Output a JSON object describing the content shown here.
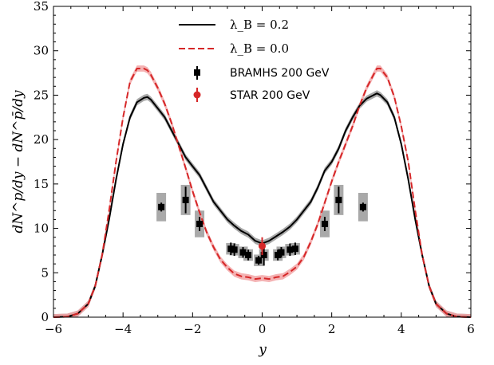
{
  "chart_data": {
    "type": "line",
    "xlabel": "y",
    "ylabel": "dN^p/dy − dN^p̄/dy",
    "xlim": [
      -6,
      6
    ],
    "ylim": [
      0,
      35
    ],
    "xticks": [
      "−6",
      "−4",
      "−2",
      "0",
      "2",
      "4",
      "6"
    ],
    "yticks": [
      "0",
      "5",
      "10",
      "15",
      "20",
      "25",
      "30",
      "35"
    ],
    "legend_position": "top-center",
    "series": [
      {
        "name": "λ_B = 0.2",
        "style": "solid",
        "color": "#000000",
        "band_color": "#9a9a9a",
        "x": [
          -6.0,
          -5.6,
          -5.3,
          -5.0,
          -4.8,
          -4.6,
          -4.4,
          -4.2,
          -4.0,
          -3.8,
          -3.6,
          -3.4,
          -3.3,
          -3.2,
          -3.0,
          -2.8,
          -2.6,
          -2.4,
          -2.2,
          -2.0,
          -1.8,
          -1.6,
          -1.4,
          -1.2,
          -1.0,
          -0.8,
          -0.6,
          -0.4,
          -0.2,
          0.0,
          0.2,
          0.4,
          0.6,
          0.8,
          1.0,
          1.2,
          1.4,
          1.6,
          1.8,
          2.0,
          2.2,
          2.4,
          2.6,
          2.8,
          3.0,
          3.2,
          3.3,
          3.4,
          3.6,
          3.8,
          4.0,
          4.2,
          4.4,
          4.6,
          4.8,
          5.0,
          5.3,
          5.6,
          6.0
        ],
        "values": [
          0,
          0.05,
          0.4,
          1.5,
          3.5,
          7.0,
          11.0,
          15.5,
          19.5,
          22.5,
          24.2,
          24.7,
          24.8,
          24.5,
          23.5,
          22.5,
          21.0,
          19.5,
          18.0,
          17.0,
          16.0,
          14.5,
          13.0,
          12.0,
          11.0,
          10.3,
          9.7,
          9.3,
          8.6,
          8.3,
          8.6,
          9.1,
          9.6,
          10.2,
          11.0,
          12.0,
          13.0,
          14.6,
          16.5,
          17.5,
          19.0,
          21.0,
          22.5,
          23.8,
          24.6,
          25.0,
          25.2,
          25.0,
          24.2,
          22.5,
          19.5,
          15.5,
          11.0,
          7.0,
          3.5,
          1.5,
          0.4,
          0.05,
          0
        ]
      },
      {
        "name": "λ_B = 0.0",
        "style": "dashed",
        "color": "#d62728",
        "band_color": "#f2a4a6",
        "x": [
          -6.0,
          -5.6,
          -5.3,
          -5.0,
          -4.8,
          -4.6,
          -4.4,
          -4.2,
          -4.0,
          -3.8,
          -3.6,
          -3.4,
          -3.3,
          -3.2,
          -3.0,
          -2.8,
          -2.6,
          -2.4,
          -2.2,
          -2.0,
          -1.8,
          -1.6,
          -1.4,
          -1.2,
          -1.0,
          -0.8,
          -0.6,
          -0.4,
          -0.2,
          0.0,
          0.2,
          0.4,
          0.6,
          0.8,
          1.0,
          1.2,
          1.4,
          1.6,
          1.8,
          2.0,
          2.2,
          2.4,
          2.6,
          2.8,
          3.0,
          3.2,
          3.3,
          3.4,
          3.6,
          3.8,
          4.0,
          4.2,
          4.4,
          4.6,
          4.8,
          5.0,
          5.3,
          5.6,
          6.0
        ],
        "values": [
          0,
          0.05,
          0.4,
          1.5,
          3.5,
          7.0,
          12.0,
          17.5,
          22.5,
          26.5,
          28.0,
          28.0,
          27.8,
          27.3,
          25.8,
          24.0,
          21.8,
          19.3,
          16.8,
          14.2,
          11.8,
          9.6,
          7.9,
          6.5,
          5.6,
          4.9,
          4.6,
          4.5,
          4.3,
          4.4,
          4.3,
          4.5,
          4.6,
          5.1,
          5.7,
          6.8,
          8.5,
          10.5,
          12.9,
          15.3,
          17.5,
          19.5,
          21.5,
          23.8,
          25.8,
          27.3,
          28.0,
          28.0,
          27.0,
          24.8,
          21.5,
          17.5,
          12.0,
          7.0,
          3.5,
          1.5,
          0.4,
          0.05,
          0
        ]
      }
    ],
    "markers": [
      {
        "name": "BRAMHS 200 GeV",
        "shape": "square",
        "color": "#000000",
        "x": [
          -2.9,
          -2.2,
          -1.8,
          -0.9,
          -0.8,
          -0.55,
          -0.4,
          -0.1,
          0.05,
          0.45,
          0.55,
          0.8,
          0.95,
          1.8,
          2.2,
          2.9
        ],
        "values": [
          12.4,
          13.2,
          10.5,
          7.7,
          7.6,
          7.3,
          7.0,
          6.4,
          7.0,
          7.0,
          7.3,
          7.6,
          7.7,
          10.5,
          13.2,
          12.4
        ],
        "err": [
          0.5,
          1.5,
          0.8,
          0.7,
          0.7,
          0.6,
          0.6,
          0.5,
          1.2,
          0.6,
          0.6,
          0.7,
          0.7,
          0.8,
          1.5,
          0.5
        ],
        "sys": [
          3.2,
          3.4,
          3.0,
          1.3,
          1.3,
          1.3,
          1.3,
          1.3,
          1.3,
          1.3,
          1.3,
          1.3,
          1.3,
          3.0,
          3.4,
          3.2
        ]
      },
      {
        "name": "STAR 200 GeV",
        "shape": "circle",
        "color": "#d62728",
        "x": [
          0.0
        ],
        "values": [
          8.0
        ],
        "err": [
          1.0
        ]
      }
    ]
  }
}
